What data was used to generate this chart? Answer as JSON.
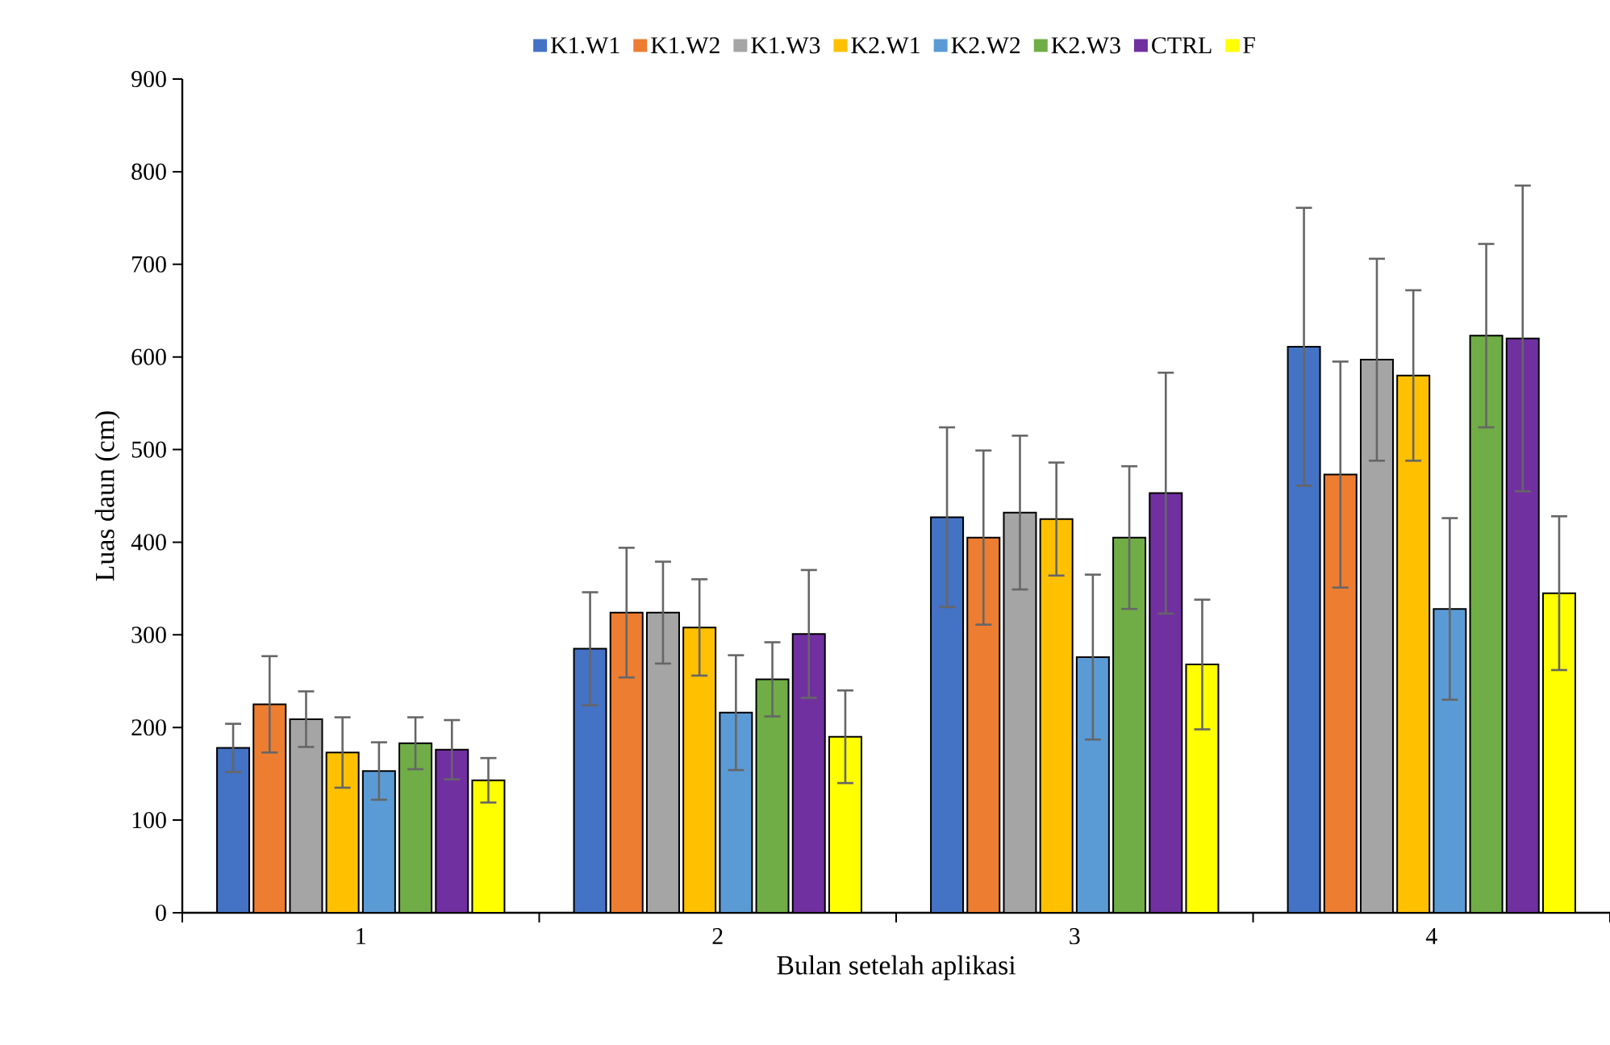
{
  "chart_data": {
    "type": "bar",
    "xlabel": "Bulan setelah aplikasi",
    "ylabel": "Luas daun (cm)",
    "categories": [
      "1",
      "2",
      "3",
      "4"
    ],
    "series": [
      {
        "name": "K1.W1",
        "color": "#4472c4",
        "values": [
          178,
          285,
          427,
          611
        ],
        "errors": [
          26,
          61,
          97,
          150
        ]
      },
      {
        "name": "K1.W2",
        "color": "#ed7d31",
        "values": [
          225,
          324,
          405,
          473
        ],
        "errors": [
          52,
          70,
          94,
          122
        ]
      },
      {
        "name": "K1.W3",
        "color": "#a5a5a5",
        "values": [
          209,
          324,
          432,
          597
        ],
        "errors": [
          30,
          55,
          83,
          109
        ]
      },
      {
        "name": "K2.W1",
        "color": "#ffc000",
        "values": [
          173,
          308,
          425,
          580
        ],
        "errors": [
          38,
          52,
          61,
          92
        ]
      },
      {
        "name": "K2.W2",
        "color": "#5b9bd5",
        "values": [
          153,
          216,
          276,
          328
        ],
        "errors": [
          31,
          62,
          89,
          98
        ]
      },
      {
        "name": "K2.W3",
        "color": "#70ad47",
        "values": [
          183,
          252,
          405,
          623
        ],
        "errors": [
          28,
          40,
          77,
          99
        ]
      },
      {
        "name": "CTRL",
        "color": "#7030a0",
        "values": [
          176,
          301,
          453,
          620
        ],
        "errors": [
          32,
          69,
          130,
          165
        ]
      },
      {
        "name": "F",
        "color": "#ffff00",
        "values": [
          143,
          190,
          268,
          345
        ],
        "errors": [
          24,
          50,
          70,
          83
        ]
      }
    ],
    "ylim": [
      0,
      900
    ],
    "yticks": [
      0,
      100,
      200,
      300,
      400,
      500,
      600,
      700,
      800,
      900
    ],
    "grid": false,
    "legend": "top"
  }
}
